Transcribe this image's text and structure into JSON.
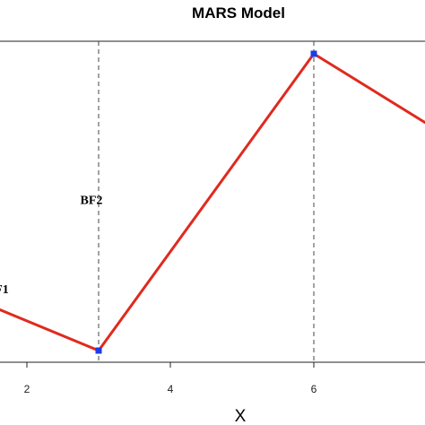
{
  "chart_data": {
    "type": "line",
    "title": "MARS Model",
    "xlabel": "X",
    "ylabel": "",
    "xlim": [
      1.6,
      7.8
    ],
    "ylim": [
      0,
      1
    ],
    "x_ticks": [
      2,
      4,
      6
    ],
    "series": [
      {
        "color": "#e02a1e",
        "x": [
          1.6,
          3,
          6,
          7.8
        ],
        "y": [
          0.17,
          0.04,
          0.97,
          0.72
        ]
      }
    ],
    "knots": [
      {
        "x": 3,
        "y": 0.04
      },
      {
        "x": 6,
        "y": 0.97
      }
    ],
    "annotations": [
      {
        "text": "F1",
        "x": 1.65,
        "y": 0.22
      },
      {
        "text": "BF2",
        "x": 2.9,
        "y": 0.5
      }
    ],
    "knot_color": "#1a3de8",
    "grid": false
  }
}
